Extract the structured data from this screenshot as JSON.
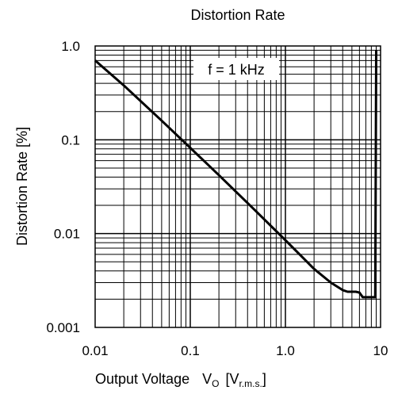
{
  "chart_data": {
    "type": "line",
    "title": "Distortion Rate",
    "xlabel_main": "Output Voltage",
    "xlabel_symbol": "V",
    "xlabel_symbol_sub": "O",
    "xlabel_unit_open": "[V",
    "xlabel_unit_sub": "r.m.s.",
    "xlabel_unit_close": "]",
    "ylabel": "Distortion Rate [%]",
    "x_scale": "log",
    "y_scale": "log",
    "xlim": [
      0.01,
      10
    ],
    "ylim": [
      0.001,
      1.0
    ],
    "x_ticks": [
      {
        "value": 0.01,
        "label": "0.01"
      },
      {
        "value": 0.1,
        "label": "0.1"
      },
      {
        "value": 1,
        "label": "1.0"
      },
      {
        "value": 10,
        "label": "10"
      }
    ],
    "y_ticks": [
      {
        "value": 1.0,
        "label": "1.0"
      },
      {
        "value": 0.1,
        "label": "0.1"
      },
      {
        "value": 0.01,
        "label": "0.01"
      },
      {
        "value": 0.001,
        "label": "0.001"
      }
    ],
    "grid": true,
    "annotation": "f = 1 kHz",
    "series": [
      {
        "x": [
          0.01,
          0.02,
          0.05,
          0.1,
          0.2,
          0.5,
          1.0,
          2.0,
          3.0,
          4.0,
          4.5,
          5.0,
          5.5,
          6.0,
          6.5,
          7.0,
          8.0,
          8.5,
          8.8,
          9.0
        ],
        "y": [
          0.7,
          0.38,
          0.16,
          0.082,
          0.042,
          0.017,
          0.0085,
          0.0042,
          0.003,
          0.0025,
          0.0024,
          0.0024,
          0.0024,
          0.00235,
          0.0021,
          0.0021,
          0.0021,
          0.0021,
          0.0021,
          0.9
        ]
      }
    ]
  }
}
